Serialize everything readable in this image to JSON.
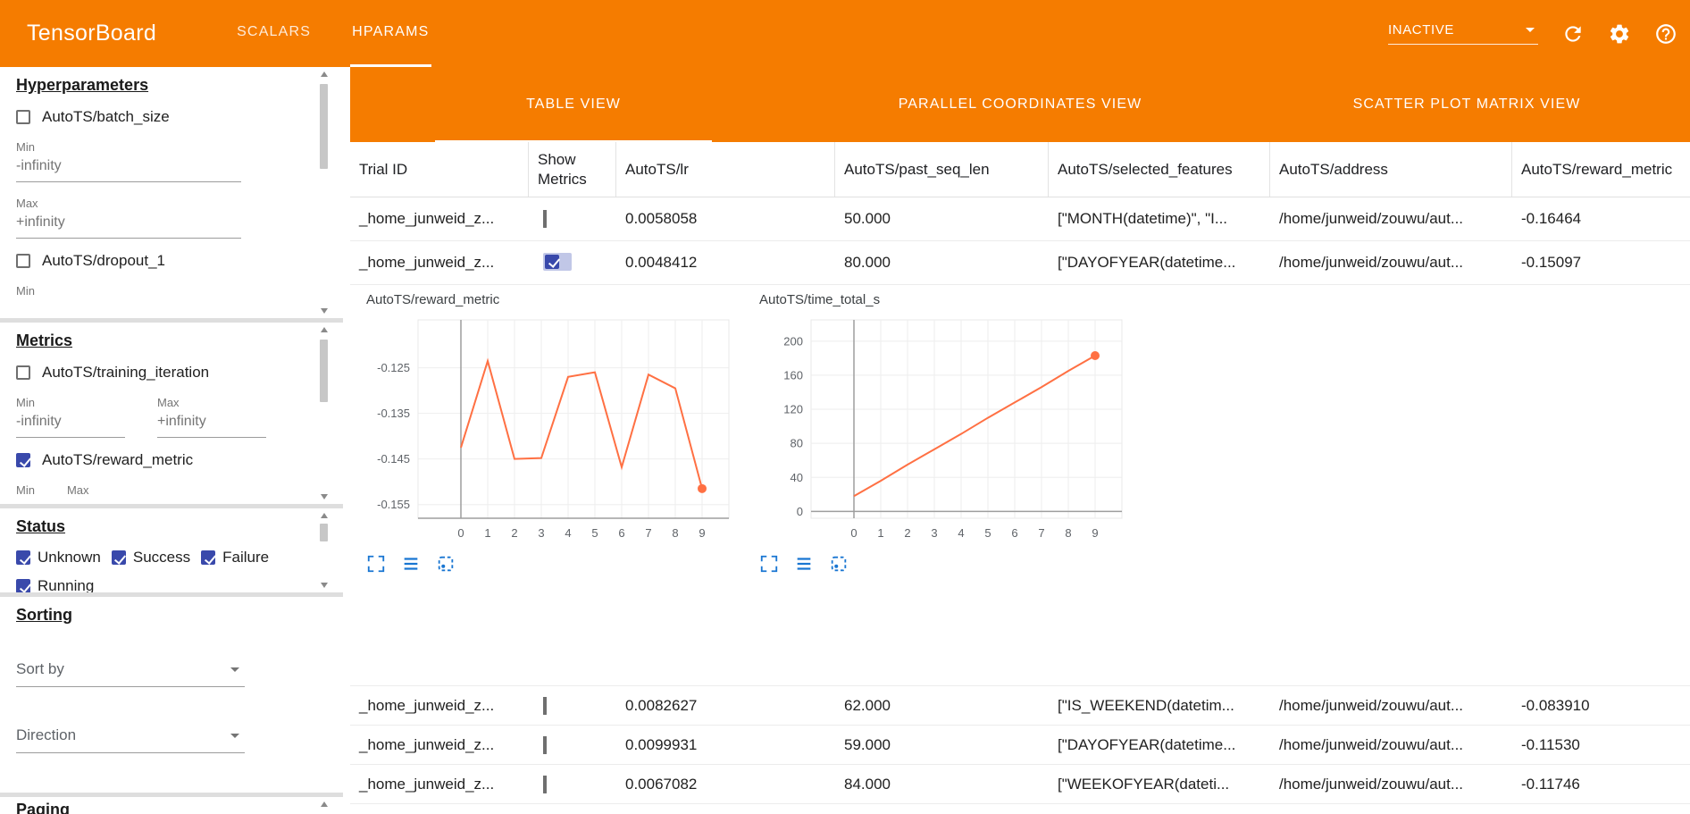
{
  "header": {
    "title": "TensorBoard",
    "nav": [
      {
        "label": "SCALARS",
        "active": false
      },
      {
        "label": "HPARAMS",
        "active": true
      }
    ],
    "run_status": "INACTIVE",
    "icons": [
      "refresh-icon",
      "settings-icon",
      "help-icon"
    ]
  },
  "sidebar": {
    "hyperparameters": {
      "title": "Hyperparameters",
      "items": [
        {
          "label": "AutoTS/batch_size",
          "checked": false,
          "min_label": "Min",
          "min_value": "-infinity",
          "max_label": "Max",
          "max_value": "+infinity"
        },
        {
          "label": "AutoTS/dropout_1",
          "checked": false,
          "min_label": "Min"
        }
      ]
    },
    "metrics": {
      "title": "Metrics",
      "items": [
        {
          "label": "AutoTS/training_iteration",
          "checked": false,
          "min_label": "Min",
          "min_value": "-infinity",
          "max_label": "Max",
          "max_value": "+infinity"
        },
        {
          "label": "AutoTS/reward_metric",
          "checked": true,
          "min_label": "Min",
          "max_label": "Max"
        }
      ]
    },
    "status": {
      "title": "Status",
      "options": [
        {
          "label": "Unknown",
          "checked": true
        },
        {
          "label": "Success",
          "checked": true
        },
        {
          "label": "Failure",
          "checked": true
        },
        {
          "label": "Running",
          "checked": true
        }
      ]
    },
    "sorting": {
      "title": "Sorting",
      "sort_by_placeholder": "Sort by",
      "direction_placeholder": "Direction"
    },
    "paging": {
      "title": "Paging"
    }
  },
  "main": {
    "view_tabs": [
      {
        "label": "TABLE VIEW",
        "active": true
      },
      {
        "label": "PARALLEL COORDINATES VIEW",
        "active": false
      },
      {
        "label": "SCATTER PLOT MATRIX VIEW",
        "active": false
      }
    ],
    "table": {
      "columns": [
        "Trial ID",
        "Show Metrics",
        "AutoTS/lr",
        "AutoTS/past_seq_len",
        "AutoTS/selected_features",
        "AutoTS/address",
        "AutoTS/reward_metric"
      ],
      "rows": [
        {
          "trial_id": "_home_junweid_z...",
          "show_metrics": false,
          "lr": "0.0058058",
          "past_seq_len": "50.000",
          "selected_features": "[\"MONTH(datetime)\", \"I...",
          "address": "/home/junweid/zouwu/aut...",
          "reward_metric": "-0.16464"
        },
        {
          "trial_id": "_home_junweid_z...",
          "show_metrics": true,
          "lr": "0.0048412",
          "past_seq_len": "80.000",
          "selected_features": "[\"DAYOFYEAR(datetime...",
          "address": "/home/junweid/zouwu/aut...",
          "reward_metric": "-0.15097"
        },
        {
          "trial_id": "_home_junweid_z...",
          "show_metrics": false,
          "lr": "0.0082627",
          "past_seq_len": "62.000",
          "selected_features": "[\"IS_WEEKEND(datetim...",
          "address": "/home/junweid/zouwu/aut...",
          "reward_metric": "-0.083910"
        },
        {
          "trial_id": "_home_junweid_z...",
          "show_metrics": false,
          "lr": "0.0099931",
          "past_seq_len": "59.000",
          "selected_features": "[\"DAYOFYEAR(datetime...",
          "address": "/home/junweid/zouwu/aut...",
          "reward_metric": "-0.11530"
        },
        {
          "trial_id": "_home_junweid_z...",
          "show_metrics": false,
          "lr": "0.0067082",
          "past_seq_len": "84.000",
          "selected_features": "[\"WEEKOFYEAR(dateti...",
          "address": "/home/junweid/zouwu/aut...",
          "reward_metric": "-0.11746"
        }
      ]
    },
    "chart_tools": [
      "expand-icon",
      "data-table-icon",
      "fit-domain-icon"
    ]
  },
  "chart_data": [
    {
      "type": "line",
      "title": "AutoTS/reward_metric",
      "x": [
        0,
        1,
        2,
        3,
        4,
        5,
        6,
        7,
        8,
        9
      ],
      "y": [
        -0.1425,
        -0.1235,
        -0.145,
        -0.1448,
        -0.127,
        -0.126,
        -0.1468,
        -0.1265,
        -0.1295,
        -0.1515
      ],
      "xlim": [
        -1.6,
        10.0
      ],
      "ylim": [
        -0.158,
        -0.1145
      ],
      "xticks": [
        0,
        1,
        2,
        3,
        4,
        5,
        6,
        7,
        8,
        9
      ],
      "yticks": [
        -0.125,
        -0.135,
        -0.145,
        -0.155
      ],
      "ytick_labels": [
        "-0.125",
        "-0.135",
        "-0.145",
        "-0.155"
      ],
      "grid": true,
      "legend": "none",
      "line_color": "#ff7043",
      "end_marker": true,
      "axis_x": 0,
      "axis_y": -0.158
    },
    {
      "type": "line",
      "title": "AutoTS/time_total_s",
      "x": [
        0,
        1,
        2,
        3,
        4,
        5,
        6,
        7,
        8,
        9
      ],
      "y": [
        18,
        36,
        55,
        73,
        91,
        110,
        128,
        146,
        165,
        183
      ],
      "xlim": [
        -1.6,
        10.0
      ],
      "ylim": [
        -8,
        225
      ],
      "xticks": [
        0,
        1,
        2,
        3,
        4,
        5,
        6,
        7,
        8,
        9
      ],
      "yticks": [
        0,
        40,
        80,
        120,
        160,
        200
      ],
      "ytick_labels": [
        "0",
        "40",
        "80",
        "120",
        "160",
        "200"
      ],
      "grid": true,
      "legend": "none",
      "line_color": "#ff7043",
      "end_marker": true,
      "axis_x": 0,
      "axis_y": 0
    }
  ],
  "colors": {
    "toolbar_orange": "#f57c00",
    "chart_line": "#ff7043",
    "checkbox_checked": "#3949ab",
    "tool_icon_blue": "#1976d2"
  }
}
